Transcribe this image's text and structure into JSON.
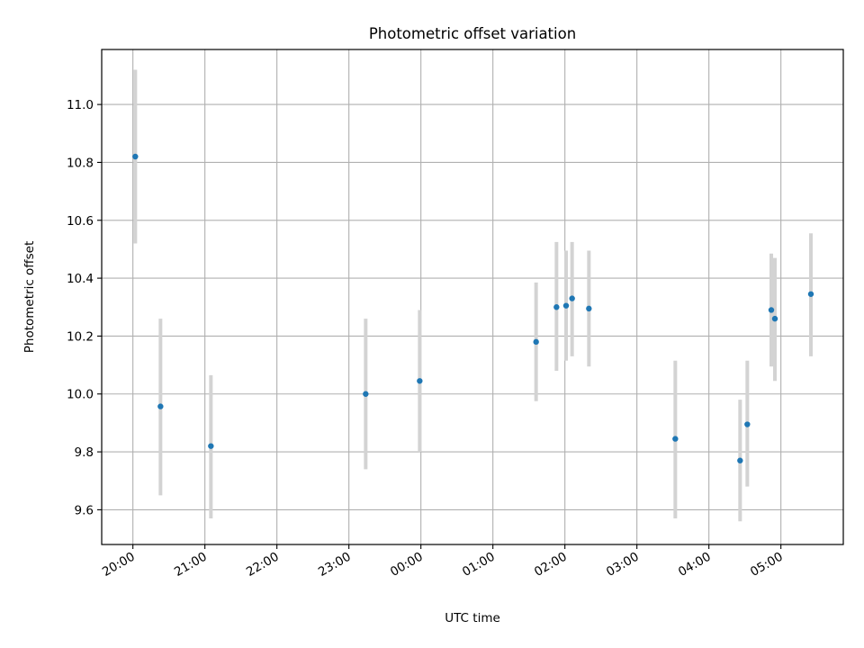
{
  "chart_data": {
    "type": "scatter",
    "title": "Photometric offset variation",
    "xlabel": "UTC time",
    "ylabel": "Photometric offset",
    "x_axis_kind": "time",
    "xlim": [
      "19:34",
      "05:52"
    ],
    "ylim": [
      9.48,
      11.19
    ],
    "xticks": [
      "20:00",
      "21:00",
      "22:00",
      "23:00",
      "00:00",
      "01:00",
      "02:00",
      "03:00",
      "04:00",
      "05:00"
    ],
    "yticks": [
      9.6,
      9.8,
      10.0,
      10.2,
      10.4,
      10.6,
      10.8,
      11.0
    ],
    "grid": true,
    "series": [
      {
        "marker_color": "#1f77b4",
        "errorbar_color": "#d3d3d3",
        "points": [
          {
            "x": "20:02",
            "y": 10.82,
            "y_low": 10.52,
            "y_high": 11.12
          },
          {
            "x": "20:23",
            "y": 9.957,
            "y_low": 9.65,
            "y_high": 10.26
          },
          {
            "x": "21:05",
            "y": 9.82,
            "y_low": 9.57,
            "y_high": 10.065
          },
          {
            "x": "23:14",
            "y": 10.0,
            "y_low": 9.74,
            "y_high": 10.26
          },
          {
            "x": "23:59",
            "y": 10.045,
            "y_low": 9.8,
            "y_high": 10.29
          },
          {
            "x": "01:36",
            "y": 10.18,
            "y_low": 9.975,
            "y_high": 10.385
          },
          {
            "x": "01:53",
            "y": 10.3,
            "y_low": 10.08,
            "y_high": 10.525
          },
          {
            "x": "02:01",
            "y": 10.305,
            "y_low": 10.115,
            "y_high": 10.495
          },
          {
            "x": "02:06",
            "y": 10.33,
            "y_low": 10.13,
            "y_high": 10.525
          },
          {
            "x": "02:20",
            "y": 10.295,
            "y_low": 10.095,
            "y_high": 10.495
          },
          {
            "x": "03:32",
            "y": 9.845,
            "y_low": 9.57,
            "y_high": 10.115
          },
          {
            "x": "04:26",
            "y": 9.77,
            "y_low": 9.56,
            "y_high": 9.98
          },
          {
            "x": "04:32",
            "y": 9.895,
            "y_low": 9.68,
            "y_high": 10.115
          },
          {
            "x": "04:52",
            "y": 10.29,
            "y_low": 10.095,
            "y_high": 10.485
          },
          {
            "x": "04:55",
            "y": 10.26,
            "y_low": 10.045,
            "y_high": 10.47
          },
          {
            "x": "05:25",
            "y": 10.345,
            "y_low": 10.13,
            "y_high": 10.555
          }
        ]
      }
    ]
  }
}
